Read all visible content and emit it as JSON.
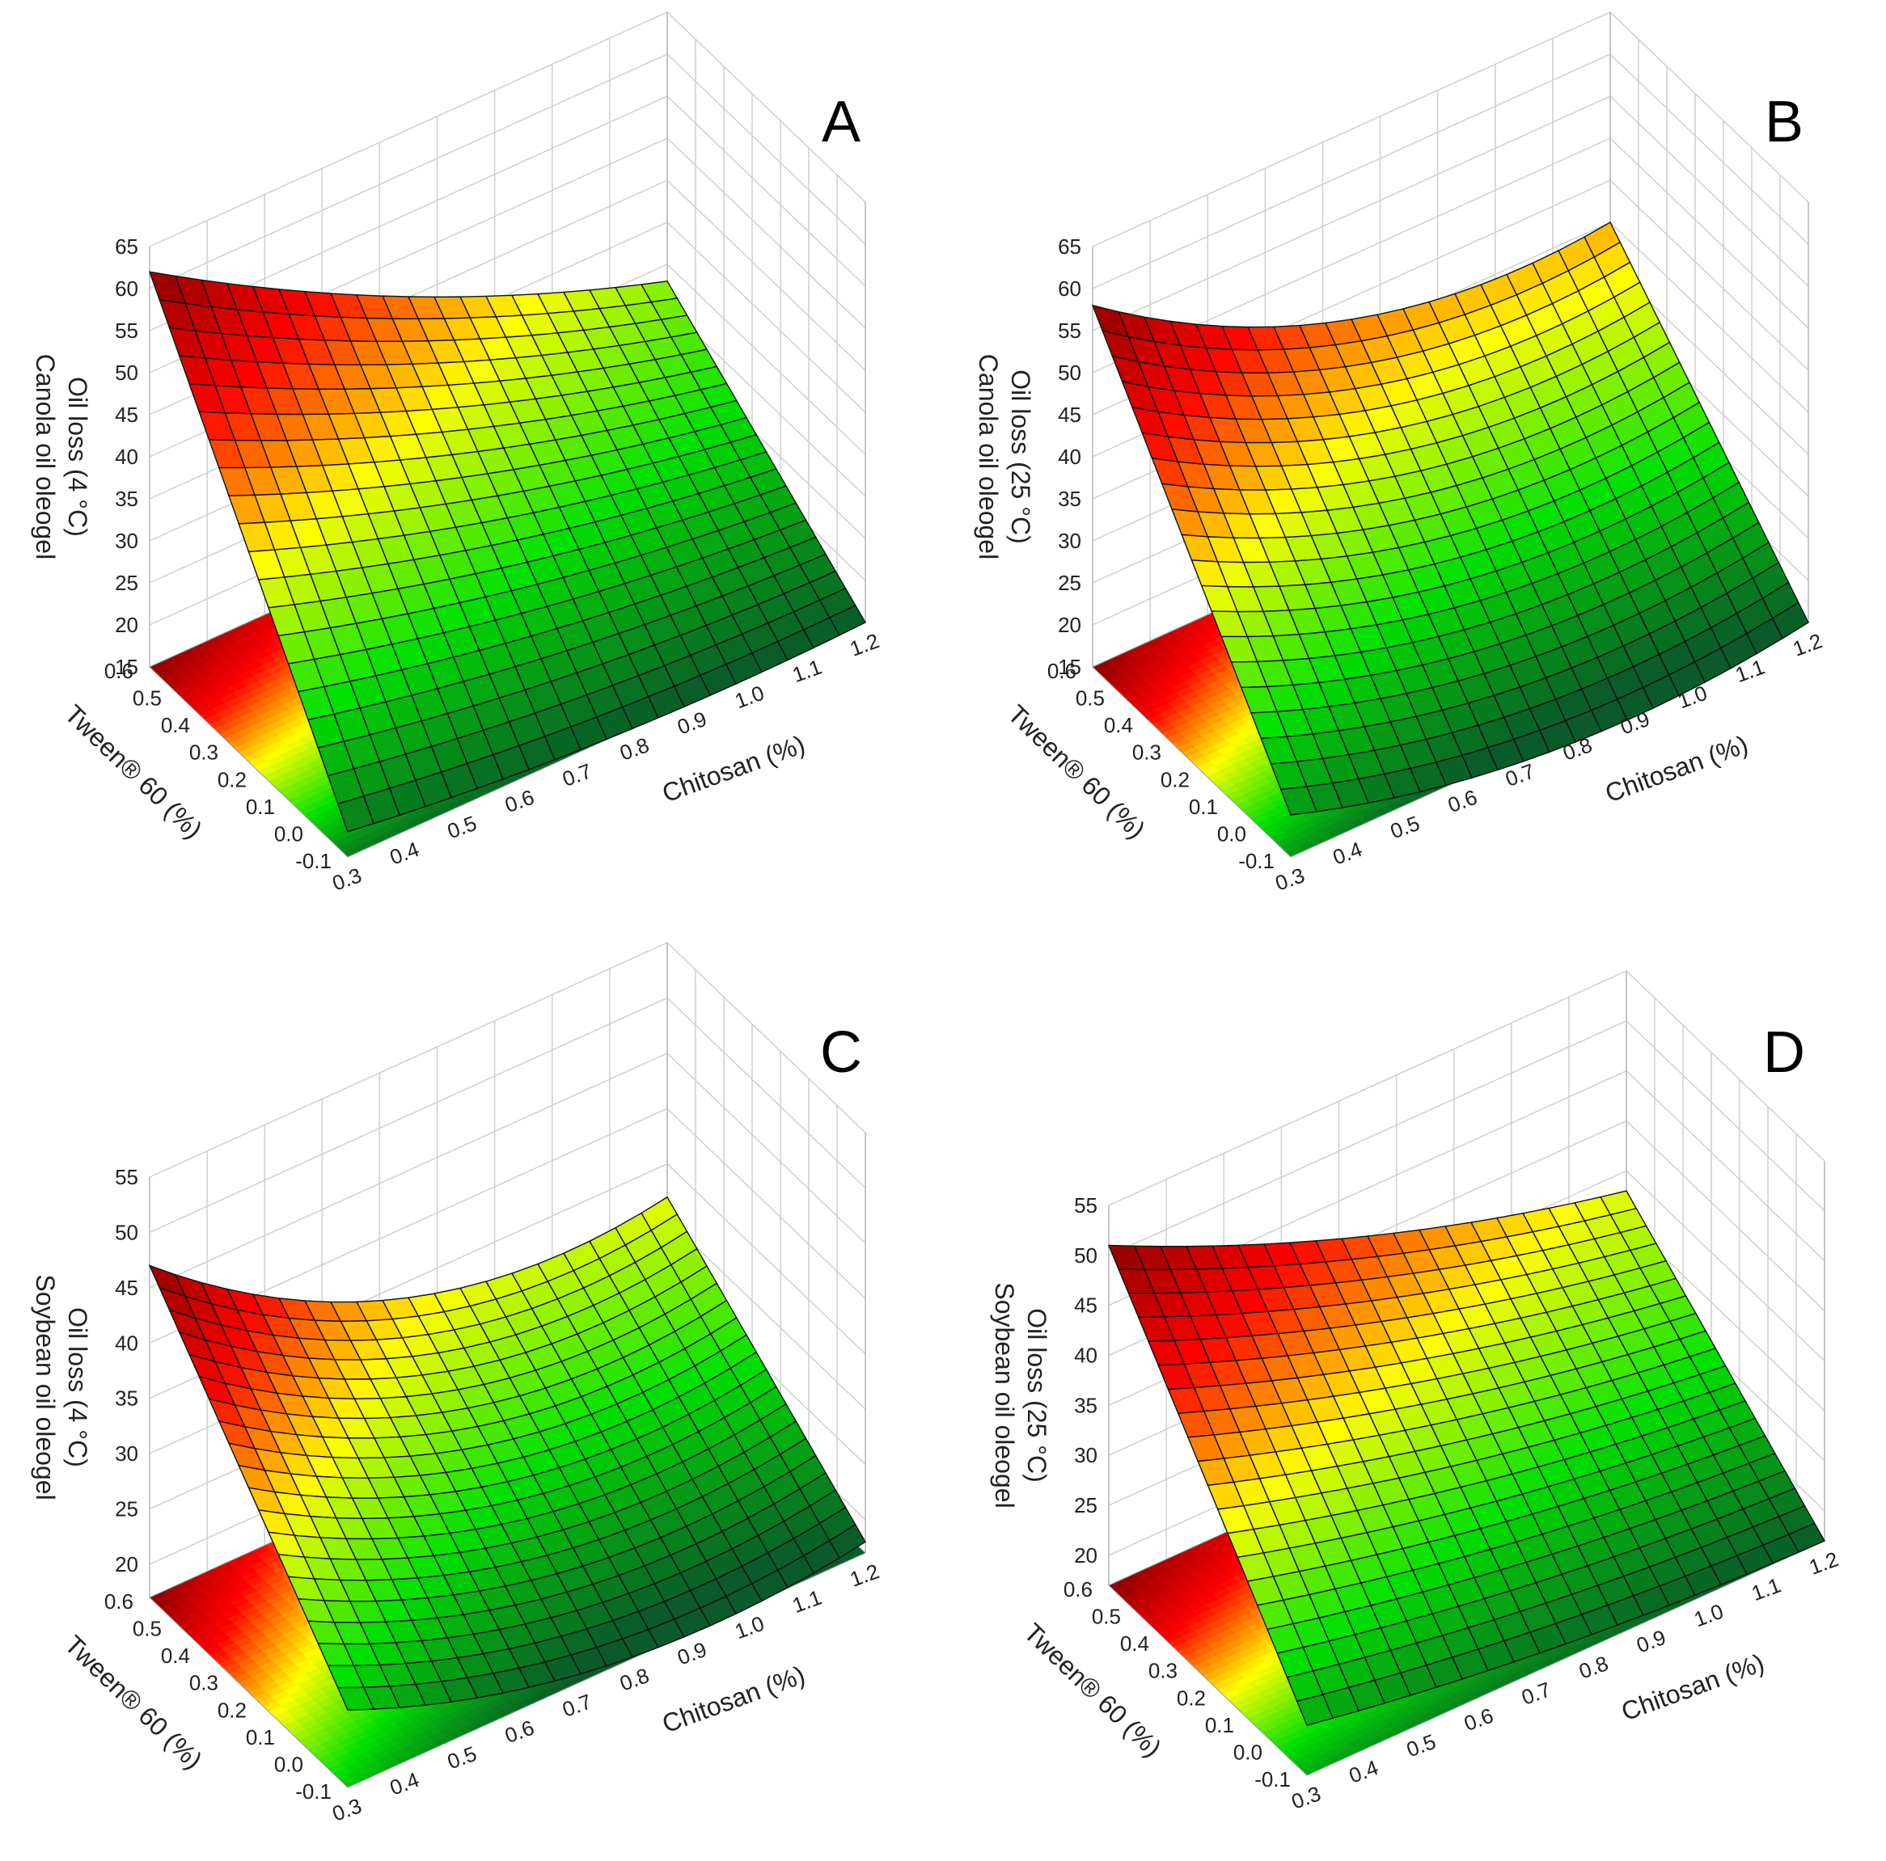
{
  "figure_kind": "response surface plots",
  "chart_data": [
    {
      "type": "surface3d",
      "panel_label": "A",
      "zlabel_lines": [
        "Oil loss (4 °C)",
        "Canola oil oleogel"
      ],
      "xlabel": "Chitosan (%)",
      "ylabel": "Tween® 60 (%)",
      "x_ticks": [
        "0.3",
        "0.4",
        "0.5",
        "0.6",
        "0.7",
        "0.8",
        "0.9",
        "1.0",
        "1.1",
        "1.2"
      ],
      "y_ticks": [
        "-0.1",
        "0.0",
        "0.1",
        "0.2",
        "0.3",
        "0.4",
        "0.5",
        "0.6"
      ],
      "z_ticks": [
        "15",
        "20",
        "25",
        "30",
        "35",
        "40",
        "45",
        "50",
        "55",
        "60",
        "65"
      ],
      "xlim": [
        0.3,
        1.2
      ],
      "ylim": [
        -0.1,
        0.6
      ],
      "zlim": [
        15,
        65
      ],
      "corner_values": {
        "x0.3_y0.6": 62,
        "x0.3_y-0.1": 18,
        "x1.2_y0.6": 33,
        "x1.2_y-0.1": 15
      },
      "curvature": 8,
      "colormap": [
        "#8b0000",
        "#ff0000",
        "#ffff00",
        "#00e000",
        "#0a5a2a"
      ]
    },
    {
      "type": "surface3d",
      "panel_label": "B",
      "zlabel_lines": [
        "Oil loss (25 °C)",
        "Canola oil oleogel"
      ],
      "xlabel": "Chitosan (%)",
      "ylabel": "Tween® 60 (%)",
      "x_ticks": [
        "0.3",
        "0.4",
        "0.5",
        "0.6",
        "0.7",
        "0.8",
        "0.9",
        "1.0",
        "1.1",
        "1.2"
      ],
      "y_ticks": [
        "-0.1",
        "0.0",
        "0.1",
        "0.2",
        "0.3",
        "0.4",
        "0.5",
        "0.6"
      ],
      "z_ticks": [
        "15",
        "20",
        "25",
        "30",
        "35",
        "40",
        "45",
        "50",
        "55",
        "60",
        "65"
      ],
      "xlim": [
        0.3,
        1.2
      ],
      "ylim": [
        -0.1,
        0.6
      ],
      "zlim": [
        15,
        65
      ],
      "corner_values": {
        "x0.3_y0.6": 58,
        "x0.3_y-0.1": 20,
        "x1.2_y0.6": 40,
        "x1.2_y-0.1": 15
      },
      "curvature": 22,
      "colormap": [
        "#8b0000",
        "#ff0000",
        "#ffff00",
        "#00e000",
        "#0a5a2a"
      ]
    },
    {
      "type": "surface3d",
      "panel_label": "C",
      "zlabel_lines": [
        "Oil loss (4 °C)",
        "Soybean oil oleogel"
      ],
      "xlabel": "Chitosan (%)",
      "ylabel": "Tween® 60 (%)",
      "x_ticks": [
        "0.3",
        "0.4",
        "0.5",
        "0.6",
        "0.7",
        "0.8",
        "0.9",
        "1.0",
        "1.1",
        "1.2"
      ],
      "y_ticks": [
        "-0.1",
        "0.0",
        "0.1",
        "0.2",
        "0.3",
        "0.4",
        "0.5",
        "0.6"
      ],
      "z_ticks": [
        "20",
        "25",
        "30",
        "35",
        "40",
        "45",
        "50",
        "55"
      ],
      "xlim": [
        0.3,
        1.2
      ],
      "ylim": [
        -0.1,
        0.6
      ],
      "zlim": [
        17,
        55
      ],
      "corner_values": {
        "x0.3_y0.6": 47,
        "x0.3_y-0.1": 24,
        "x1.2_y0.6": 32,
        "x1.2_y-0.1": 18
      },
      "curvature": 20,
      "colormap": [
        "#8b0000",
        "#ff0000",
        "#ffff00",
        "#00e000",
        "#0a5a2a"
      ]
    },
    {
      "type": "surface3d",
      "panel_label": "D",
      "zlabel_lines": [
        "Oil loss (25 °C)",
        "Soybean oil oleogel"
      ],
      "xlabel": "Chitosan (%)",
      "ylabel": "Tween® 60 (%)",
      "x_ticks": [
        "0.3",
        "0.4",
        "0.5",
        "0.6",
        "0.7",
        "0.8",
        "0.9",
        "1.0",
        "1.1",
        "1.2"
      ],
      "y_ticks": [
        "-0.1",
        "0.0",
        "0.1",
        "0.2",
        "0.3",
        "0.4",
        "0.5",
        "0.6"
      ],
      "z_ticks": [
        "20",
        "25",
        "30",
        "35",
        "40",
        "45",
        "50",
        "55"
      ],
      "xlim": [
        0.3,
        1.2
      ],
      "ylim": [
        -0.1,
        0.6
      ],
      "zlim": [
        17,
        55
      ],
      "corner_values": {
        "x0.3_y0.6": 51,
        "x0.3_y-0.1": 22,
        "x1.2_y0.6": 33,
        "x1.2_y-0.1": 17
      },
      "curvature": 6,
      "colormap": [
        "#8b0000",
        "#ff0000",
        "#ffff00",
        "#00e000",
        "#0a5a2a"
      ]
    }
  ]
}
